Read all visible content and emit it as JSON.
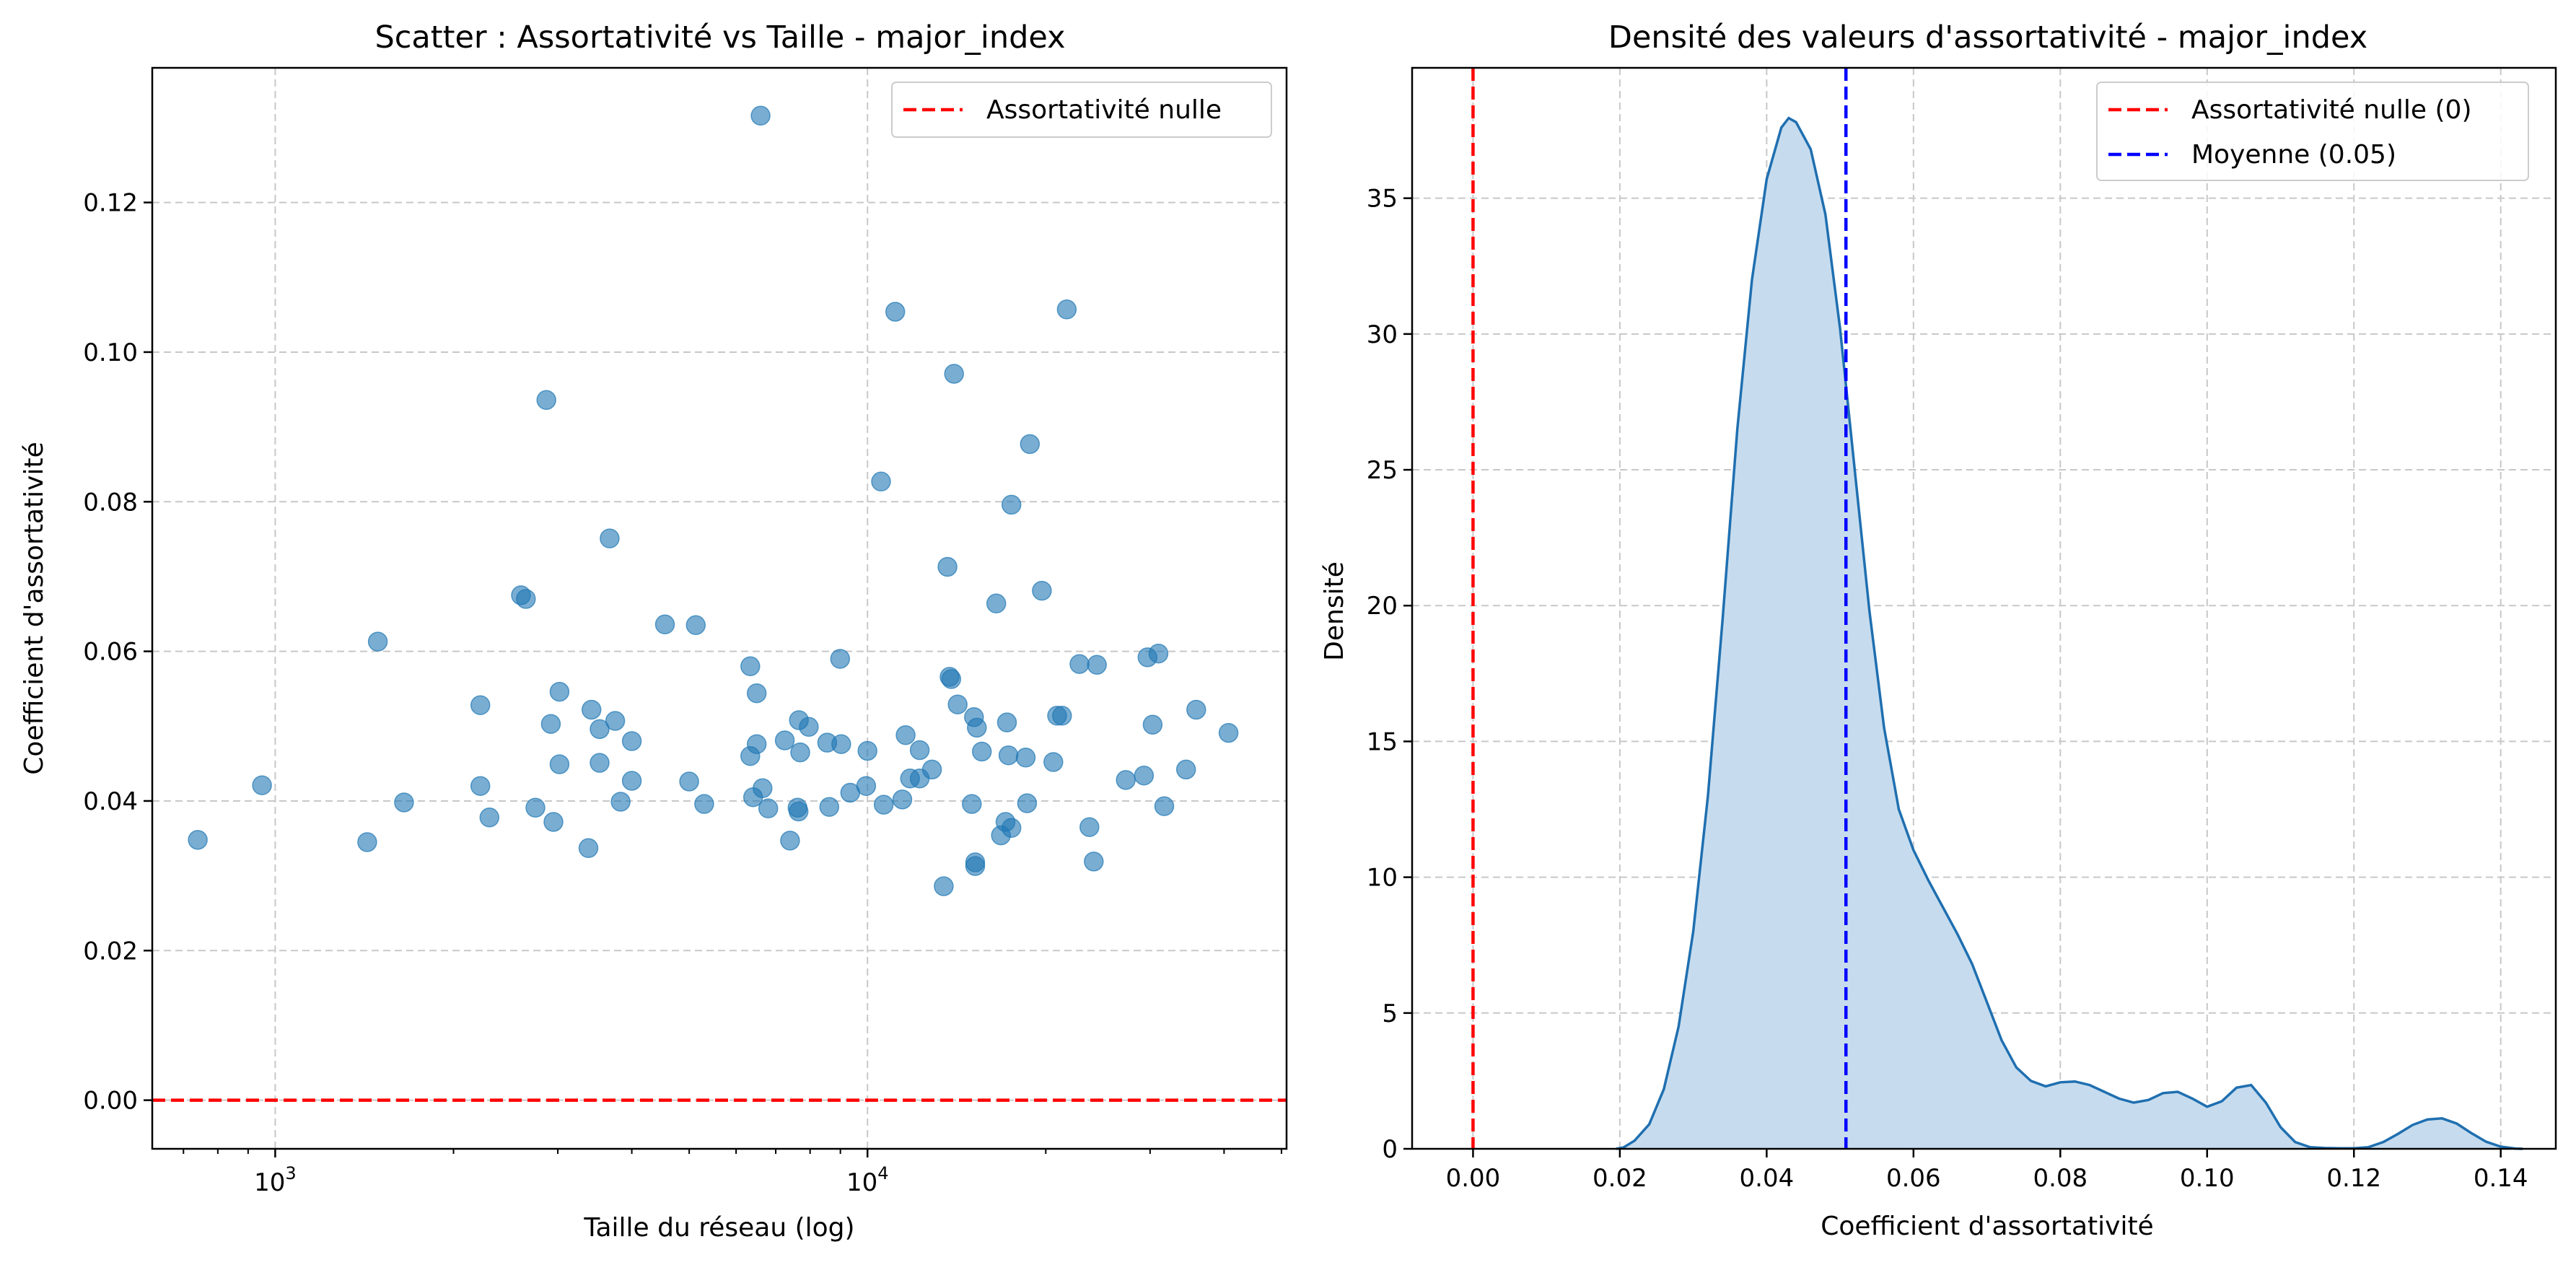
{
  "colors": {
    "scatter": "#1f77b4",
    "zero_line": "#ff0000",
    "mean_line": "#0000ff",
    "kde_line": "#1f6fb0",
    "kde_fill": "#c6dcee",
    "grid": "#c8c8c8"
  },
  "chart_data": [
    {
      "type": "scatter",
      "title": "Scatter : Assortativité vs Taille - major_index",
      "xlabel": "Taille du réseau (log)",
      "ylabel": "Coefficient d'assortativité",
      "xscale": "log",
      "xlim": [
        620,
        51000
      ],
      "ylim": [
        -0.0065,
        0.138
      ],
      "xticks": [
        {
          "v": 1000,
          "base": "10",
          "exp": "3"
        },
        {
          "v": 10000,
          "base": "10",
          "exp": "4"
        }
      ],
      "yticks": [
        "0.00",
        "0.02",
        "0.04",
        "0.06",
        "0.08",
        "0.10",
        "0.12"
      ],
      "grid": true,
      "legend_position": "top-right",
      "legend": [
        {
          "label": "Assortativité nulle",
          "color": "#ff0000",
          "style": "dashed"
        }
      ],
      "hline": {
        "y": 0.0
      },
      "points": [
        [
          740,
          0.0348
        ],
        [
          950,
          0.0421
        ],
        [
          1430,
          0.0345
        ],
        [
          1490,
          0.0613
        ],
        [
          1650,
          0.0398
        ],
        [
          2220,
          0.0528
        ],
        [
          2220,
          0.042
        ],
        [
          2300,
          0.0378
        ],
        [
          2600,
          0.0675
        ],
        [
          2650,
          0.067
        ],
        [
          2750,
          0.0391
        ],
        [
          2870,
          0.0936
        ],
        [
          2920,
          0.0503
        ],
        [
          2950,
          0.0372
        ],
        [
          3020,
          0.0546
        ],
        [
          3020,
          0.0449
        ],
        [
          3380,
          0.0337
        ],
        [
          3420,
          0.0522
        ],
        [
          3530,
          0.0451
        ],
        [
          3530,
          0.0496
        ],
        [
          3670,
          0.0751
        ],
        [
          3750,
          0.0507
        ],
        [
          3830,
          0.0399
        ],
        [
          4000,
          0.048
        ],
        [
          4000,
          0.0427
        ],
        [
          4550,
          0.0636
        ],
        [
          5000,
          0.0426
        ],
        [
          5130,
          0.0635
        ],
        [
          5300,
          0.0396
        ],
        [
          6340,
          0.058
        ],
        [
          6340,
          0.046
        ],
        [
          6410,
          0.0405
        ],
        [
          6500,
          0.0544
        ],
        [
          6500,
          0.0476
        ],
        [
          6600,
          0.1316
        ],
        [
          6650,
          0.0417
        ],
        [
          6800,
          0.039
        ],
        [
          7250,
          0.0481
        ],
        [
          7400,
          0.0347
        ],
        [
          7620,
          0.0391
        ],
        [
          7650,
          0.0386
        ],
        [
          7660,
          0.0508
        ],
        [
          7700,
          0.0465
        ],
        [
          7960,
          0.0499
        ],
        [
          8550,
          0.0478
        ],
        [
          8620,
          0.0392
        ],
        [
          8990,
          0.059
        ],
        [
          9030,
          0.0476
        ],
        [
          9350,
          0.0411
        ],
        [
          9950,
          0.042
        ],
        [
          10000,
          0.0467
        ],
        [
          10540,
          0.0827
        ],
        [
          10650,
          0.0395
        ],
        [
          11140,
          0.1054
        ],
        [
          11450,
          0.0402
        ],
        [
          11600,
          0.0488
        ],
        [
          11800,
          0.043
        ],
        [
          12250,
          0.043
        ],
        [
          12250,
          0.0468
        ],
        [
          12850,
          0.0442
        ],
        [
          13450,
          0.0286
        ],
        [
          13650,
          0.0713
        ],
        [
          13760,
          0.0566
        ],
        [
          13850,
          0.0563
        ],
        [
          14000,
          0.0971
        ],
        [
          14200,
          0.0529
        ],
        [
          15000,
          0.0396
        ],
        [
          15130,
          0.0512
        ],
        [
          15200,
          0.0318
        ],
        [
          15200,
          0.0313
        ],
        [
          15300,
          0.0498
        ],
        [
          15600,
          0.0466
        ],
        [
          16500,
          0.0664
        ],
        [
          16800,
          0.0354
        ],
        [
          17100,
          0.0372
        ],
        [
          17200,
          0.0505
        ],
        [
          17300,
          0.0461
        ],
        [
          17500,
          0.0796
        ],
        [
          17500,
          0.0364
        ],
        [
          18500,
          0.0458
        ],
        [
          18600,
          0.0397
        ],
        [
          18800,
          0.0877
        ],
        [
          19700,
          0.0681
        ],
        [
          20600,
          0.0452
        ],
        [
          20900,
          0.0514
        ],
        [
          21300,
          0.0514
        ],
        [
          21700,
          0.1057
        ],
        [
          22800,
          0.0583
        ],
        [
          23700,
          0.0365
        ],
        [
          24100,
          0.0319
        ],
        [
          24400,
          0.0582
        ],
        [
          27300,
          0.0428
        ],
        [
          29300,
          0.0434
        ],
        [
          29700,
          0.0592
        ],
        [
          30300,
          0.0502
        ],
        [
          31000,
          0.0597
        ],
        [
          31700,
          0.0393
        ],
        [
          34500,
          0.0442
        ],
        [
          35900,
          0.0522
        ],
        [
          40700,
          0.0491
        ]
      ]
    },
    {
      "type": "area",
      "title": "Densité des valeurs d'assortativité - major_index",
      "xlabel": "Coefficient d'assortativité",
      "ylabel": "Densité",
      "xlim": [
        -0.0083,
        0.1475
      ],
      "ylim": [
        0,
        39.8
      ],
      "xticks": [
        "0.00",
        "0.02",
        "0.04",
        "0.06",
        "0.08",
        "0.10",
        "0.12",
        "0.14"
      ],
      "yticks": [
        "0",
        "5",
        "10",
        "15",
        "20",
        "25",
        "30",
        "35"
      ],
      "grid": true,
      "legend_position": "top-right",
      "legend": [
        {
          "label": "Assortativité nulle (0)",
          "color": "#ff0000",
          "style": "dashed"
        },
        {
          "label": "Moyenne (0.05)",
          "color": "#0000ff",
          "style": "dashed"
        }
      ],
      "vlines": [
        {
          "x": 0.0,
          "role": "zero"
        },
        {
          "x": 0.0508,
          "role": "mean"
        }
      ],
      "density": [
        [
          0.0195,
          0
        ],
        [
          0.0205,
          0.05
        ],
        [
          0.022,
          0.3
        ],
        [
          0.024,
          0.9
        ],
        [
          0.026,
          2.2
        ],
        [
          0.028,
          4.5
        ],
        [
          0.03,
          8.0
        ],
        [
          0.032,
          13.0
        ],
        [
          0.034,
          19.5
        ],
        [
          0.036,
          26.5
        ],
        [
          0.038,
          32.0
        ],
        [
          0.04,
          35.7
        ],
        [
          0.042,
          37.6
        ],
        [
          0.043,
          37.95
        ],
        [
          0.044,
          37.8
        ],
        [
          0.046,
          36.8
        ],
        [
          0.048,
          34.4
        ],
        [
          0.05,
          30.2
        ],
        [
          0.052,
          25.0
        ],
        [
          0.054,
          19.8
        ],
        [
          0.056,
          15.5
        ],
        [
          0.058,
          12.5
        ],
        [
          0.06,
          11.0
        ],
        [
          0.062,
          9.9
        ],
        [
          0.064,
          8.9
        ],
        [
          0.066,
          7.9
        ],
        [
          0.068,
          6.8
        ],
        [
          0.07,
          5.4
        ],
        [
          0.072,
          4.0
        ],
        [
          0.074,
          3.0
        ],
        [
          0.076,
          2.5
        ],
        [
          0.078,
          2.3
        ],
        [
          0.08,
          2.45
        ],
        [
          0.082,
          2.48
        ],
        [
          0.084,
          2.35
        ],
        [
          0.086,
          2.1
        ],
        [
          0.088,
          1.85
        ],
        [
          0.09,
          1.7
        ],
        [
          0.092,
          1.8
        ],
        [
          0.094,
          2.05
        ],
        [
          0.096,
          2.1
        ],
        [
          0.098,
          1.85
        ],
        [
          0.1,
          1.55
        ],
        [
          0.102,
          1.75
        ],
        [
          0.104,
          2.25
        ],
        [
          0.106,
          2.35
        ],
        [
          0.108,
          1.7
        ],
        [
          0.11,
          0.8
        ],
        [
          0.112,
          0.25
        ],
        [
          0.114,
          0.06
        ],
        [
          0.116,
          0.03
        ],
        [
          0.118,
          0.02
        ],
        [
          0.12,
          0.02
        ],
        [
          0.122,
          0.06
        ],
        [
          0.124,
          0.25
        ],
        [
          0.126,
          0.55
        ],
        [
          0.128,
          0.88
        ],
        [
          0.13,
          1.08
        ],
        [
          0.132,
          1.12
        ],
        [
          0.134,
          0.93
        ],
        [
          0.136,
          0.58
        ],
        [
          0.138,
          0.26
        ],
        [
          0.14,
          0.08
        ],
        [
          0.142,
          0.01
        ],
        [
          0.143,
          0
        ]
      ]
    }
  ]
}
